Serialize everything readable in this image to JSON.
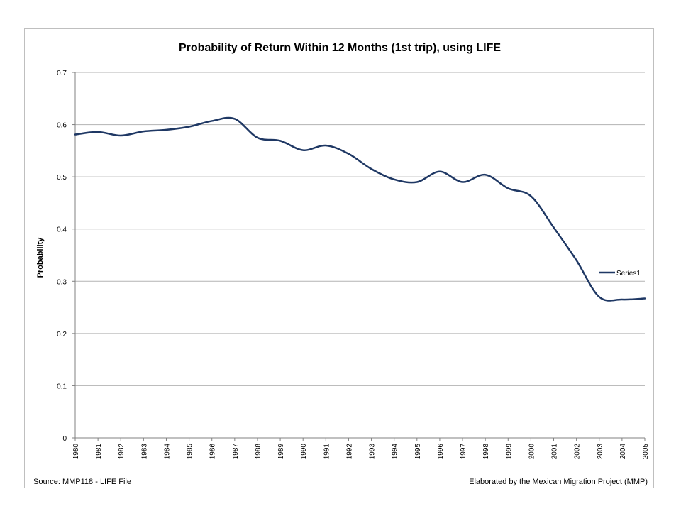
{
  "chart_data": {
    "type": "line",
    "title": "Probability of Return Within 12 Months  (1st trip), using LIFE",
    "xlabel": "",
    "ylabel": "Probability",
    "categories": [
      "1980",
      "1981",
      "1982",
      "1983",
      "1984",
      "1985",
      "1986",
      "1987",
      "1988",
      "1989",
      "1990",
      "1991",
      "1992",
      "1993",
      "1994",
      "1995",
      "1996",
      "1997",
      "1998",
      "1999",
      "2000",
      "2001",
      "2002",
      "2003",
      "2004",
      "2005"
    ],
    "series": [
      {
        "name": "Series1",
        "color": "#1f3864",
        "values": [
          0.581,
          0.586,
          0.579,
          0.587,
          0.59,
          0.596,
          0.607,
          0.611,
          0.575,
          0.569,
          0.551,
          0.56,
          0.544,
          0.515,
          0.495,
          0.49,
          0.51,
          0.49,
          0.504,
          0.478,
          0.463,
          0.403,
          0.34,
          0.27,
          0.265,
          0.267
        ]
      }
    ],
    "ylim": [
      0,
      0.7
    ],
    "yticks": [
      "0",
      "0.1",
      "0.2",
      "0.3",
      "0.4",
      "0.5",
      "0.6",
      "0.7"
    ],
    "grid": "horizontal",
    "legend_position": "right",
    "source_note": "Source: MMP118 - LIFE File",
    "credit_note": "Elaborated by the Mexican Migration Project (MMP)"
  }
}
